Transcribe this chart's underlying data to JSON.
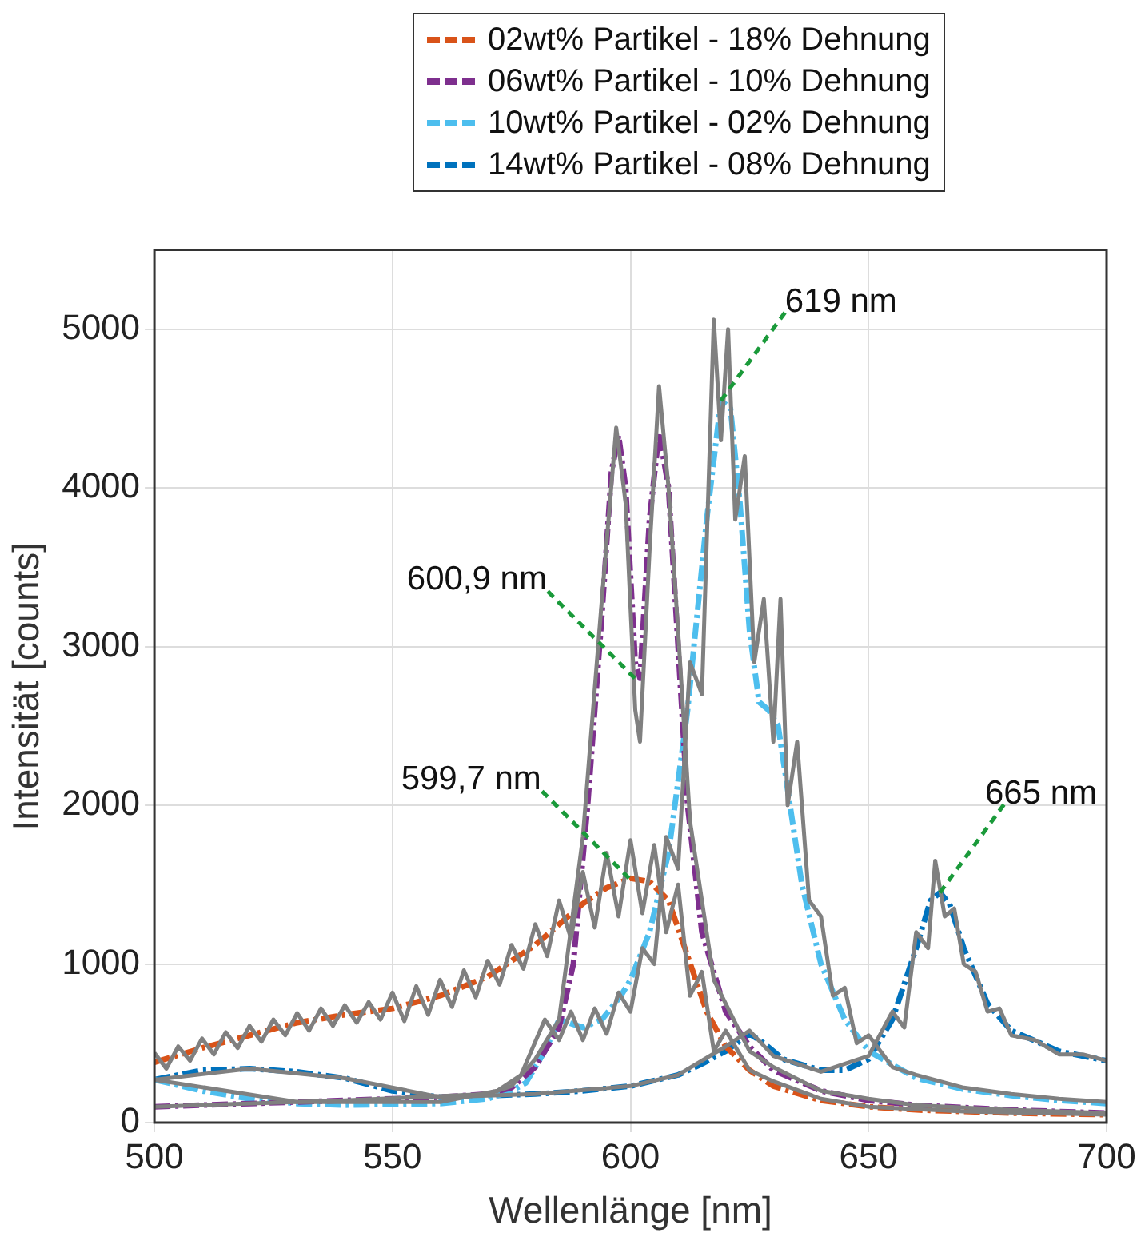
{
  "chart_data": {
    "type": "line",
    "xlabel": "Wellenlänge [nm]",
    "ylabel": "Intensität [counts]",
    "xlim": [
      500,
      700
    ],
    "xticks": [
      500,
      550,
      600,
      650,
      700
    ],
    "ylim": [
      0,
      5500
    ],
    "yticks": [
      0,
      1000,
      2000,
      3000,
      4000,
      5000
    ],
    "grid": true,
    "legend": "top",
    "marker": "none",
    "series": [
      {
        "color": "#808080",
        "line_style": "solid",
        "x": [
          500,
          502.5,
          505,
          507.5,
          510,
          512.5,
          515,
          517.5,
          520,
          522.5,
          525,
          527.5,
          530,
          532.5,
          535,
          537.5,
          540,
          542.5,
          545,
          547.5,
          550,
          552.5,
          555,
          557.5,
          560,
          562.5,
          565,
          567.5,
          570,
          572.5,
          575,
          577.5,
          580,
          582.5,
          585,
          587.5,
          590,
          592.5,
          595,
          597.5,
          600,
          602.5,
          605,
          607.5,
          610,
          612.5,
          615,
          617.5,
          620,
          625,
          630,
          640,
          650,
          670,
          700
        ],
        "values": [
          440,
          340,
          480,
          390,
          530,
          430,
          570,
          470,
          610,
          510,
          650,
          550,
          690,
          580,
          720,
          610,
          740,
          630,
          760,
          650,
          820,
          640,
          860,
          680,
          900,
          730,
          960,
          790,
          1020,
          870,
          1120,
          970,
          1250,
          1050,
          1400,
          1160,
          1580,
          1230,
          1700,
          1300,
          1780,
          1320,
          1750,
          1200,
          1500,
          800,
          950,
          450,
          580,
          330,
          260,
          150,
          100,
          70,
          50
        ]
      },
      {
        "color": "#808080",
        "line_style": "solid",
        "x": [
          500,
          540,
          570,
          575,
          580,
          585,
          590,
          594,
          597,
          599,
          601,
          602,
          604,
          606,
          608,
          610,
          612.5,
          615,
          617.5,
          620,
          625,
          630,
          640,
          650,
          660,
          680,
          700
        ],
        "values": [
          100,
          140,
          180,
          230,
          400,
          650,
          1800,
          3300,
          4380,
          3900,
          2600,
          2400,
          3600,
          4640,
          4000,
          3100,
          1900,
          1400,
          900,
          750,
          450,
          350,
          200,
          150,
          110,
          80,
          60
        ]
      },
      {
        "color": "#808080",
        "line_style": "solid",
        "x": [
          500,
          530,
          560,
          572,
          577,
          582,
          585,
          587.5,
          590,
          592.5,
          595,
          597.5,
          600,
          602.5,
          605,
          607.5,
          610,
          612.5,
          615,
          617.5,
          619,
          620.5,
          622,
          624,
          626,
          628,
          630,
          631.5,
          633,
          635,
          637.5,
          640,
          642.5,
          645,
          647.5,
          650,
          655,
          660,
          670,
          680,
          690,
          700
        ],
        "values": [
          270,
          130,
          130,
          200,
          300,
          650,
          520,
          700,
          520,
          720,
          560,
          820,
          700,
          1100,
          1000,
          1800,
          1600,
          2900,
          2700,
          5060,
          4300,
          5000,
          3800,
          4200,
          2900,
          3300,
          2400,
          3300,
          2000,
          2400,
          1400,
          1300,
          800,
          850,
          500,
          550,
          350,
          300,
          220,
          180,
          150,
          130
        ]
      },
      {
        "color": "#808080",
        "line_style": "solid",
        "x": [
          500,
          520,
          540,
          560,
          580,
          600,
          610,
          620,
          625,
          630,
          640,
          650,
          655,
          657.5,
          660,
          662.5,
          664,
          666,
          668,
          670,
          672.5,
          675,
          677.5,
          680,
          685,
          690,
          695,
          700
        ],
        "values": [
          270,
          340,
          280,
          160,
          180,
          230,
          300,
          480,
          580,
          420,
          320,
          420,
          700,
          600,
          1200,
          1100,
          1650,
          1300,
          1350,
          1000,
          950,
          700,
          720,
          550,
          520,
          430,
          430,
          390
        ]
      },
      {
        "name": "02wt% Partikel - 18% Dehnung",
        "color": "#d95319",
        "line_style": "dashed",
        "x": [
          500,
          510,
          520,
          530,
          540,
          550,
          560,
          570,
          580,
          590,
          595,
          600,
          604,
          608,
          612,
          616,
          620,
          625,
          630,
          640,
          650,
          660,
          680,
          700
        ],
        "values": [
          380,
          470,
          550,
          630,
          680,
          720,
          800,
          920,
          1120,
          1380,
          1480,
          1540,
          1520,
          1400,
          1050,
          700,
          480,
          330,
          230,
          140,
          100,
          80,
          60,
          50
        ]
      },
      {
        "name": "06wt% Partikel - 10% Dehnung",
        "color": "#7e2f8e",
        "line_style": "dashed",
        "x": [
          500,
          520,
          540,
          560,
          570,
          575,
          580,
          585,
          588,
          591,
          594,
          596,
          597.5,
          599,
          601,
          602,
          604,
          606,
          608,
          610,
          612,
          615,
          620,
          625,
          630,
          640,
          650,
          660,
          680,
          700
        ],
        "values": [
          100,
          120,
          140,
          160,
          180,
          220,
          350,
          600,
          1000,
          2000,
          3200,
          4100,
          4330,
          4000,
          2900,
          2800,
          3800,
          4350,
          4000,
          3000,
          2000,
          1200,
          700,
          480,
          330,
          200,
          140,
          110,
          80,
          60
        ]
      },
      {
        "name": "10wt% Partikel - 02% Dehnung",
        "color": "#4dbeee",
        "line_style": "dashed",
        "x": [
          500,
          510,
          520,
          530,
          540,
          560,
          570,
          575,
          578,
          582,
          585,
          590,
          594,
          598,
          600,
          604,
          608,
          612,
          616,
          619,
          621,
          623,
          625,
          627,
          629,
          631,
          633,
          636,
          640,
          645,
          650,
          660,
          670,
          680,
          690,
          700
        ],
        "values": [
          270,
          200,
          150,
          120,
          110,
          120,
          150,
          200,
          250,
          450,
          650,
          600,
          650,
          800,
          900,
          1200,
          1700,
          2600,
          3800,
          4550,
          4500,
          3900,
          3100,
          2650,
          2600,
          2500,
          2100,
          1500,
          1000,
          650,
          450,
          280,
          210,
          170,
          140,
          120
        ]
      },
      {
        "name": "14wt% Partikel - 08% Dehnung",
        "color": "#0072bd",
        "line_style": "dashed",
        "x": [
          500,
          510,
          520,
          530,
          540,
          550,
          560,
          570,
          580,
          590,
          600,
          610,
          615,
          620,
          625,
          628,
          632,
          640,
          645,
          650,
          655,
          660,
          663,
          665,
          667,
          670,
          675,
          680,
          690,
          700
        ],
        "values": [
          270,
          330,
          340,
          320,
          280,
          200,
          160,
          170,
          180,
          200,
          230,
          300,
          370,
          450,
          560,
          500,
          400,
          330,
          330,
          400,
          650,
          1100,
          1400,
          1450,
          1380,
          1100,
          750,
          580,
          450,
          390
        ]
      }
    ],
    "annotations": [
      {
        "text": "599,7 nm",
        "x": 599.7,
        "y": 1540
      },
      {
        "text": "600,9 nm",
        "x": 600.9,
        "y": 2800
      },
      {
        "text": "619 nm",
        "x": 619,
        "y": 4550
      },
      {
        "text": "665 nm",
        "x": 665,
        "y": 1450
      }
    ]
  }
}
